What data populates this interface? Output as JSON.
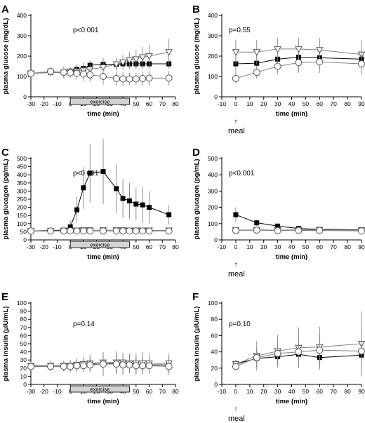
{
  "figure": {
    "background": "#ffffff",
    "text_color": "#000000"
  },
  "chart_data": [
    {
      "id": "A",
      "type": "line",
      "letter": "A",
      "xlabel": "time (min)",
      "ylabel": "plasma glucose (mg/dL)",
      "xlim": [
        -30,
        80
      ],
      "ylim": [
        0,
        400
      ],
      "xticks": [
        -30,
        -20,
        -10,
        0,
        10,
        20,
        30,
        40,
        50,
        60,
        70,
        80
      ],
      "yticks": [
        0,
        100,
        200,
        300,
        400
      ],
      "stat": "p<0.001",
      "exercise_bar": {
        "label": "exercise",
        "x0": 0,
        "x1": 45
      },
      "meal_marker": null,
      "series": [
        {
          "marker": "square",
          "color": "#000000",
          "x": [
            -30,
            -15,
            -5,
            0,
            5,
            10,
            15,
            25,
            35,
            40,
            45,
            50,
            55,
            60,
            75
          ],
          "y": [
            115,
            120,
            120,
            125,
            135,
            140,
            155,
            160,
            160,
            162,
            162,
            162,
            162,
            162,
            162
          ],
          "err": [
            10,
            10,
            15,
            20,
            25,
            30,
            25,
            30,
            25,
            25,
            25,
            25,
            25,
            25,
            25
          ]
        },
        {
          "marker": "triangle-down",
          "color": "#808080",
          "x": [
            -30,
            -15,
            -5,
            0,
            5,
            10,
            15,
            25,
            35,
            40,
            45,
            50,
            55,
            60,
            75
          ],
          "y": [
            115,
            120,
            120,
            125,
            125,
            130,
            135,
            145,
            160,
            170,
            180,
            185,
            195,
            200,
            220
          ],
          "err": [
            10,
            15,
            15,
            20,
            20,
            25,
            25,
            30,
            30,
            35,
            40,
            45,
            50,
            55,
            65
          ]
        },
        {
          "marker": "circle",
          "color": "#808080",
          "x": [
            -30,
            -15,
            -5,
            0,
            5,
            10,
            15,
            25,
            35,
            40,
            45,
            50,
            55,
            60,
            75
          ],
          "y": [
            115,
            125,
            120,
            118,
            115,
            112,
            108,
            100,
            90,
            88,
            88,
            88,
            90,
            92,
            92
          ],
          "err": [
            10,
            20,
            30,
            25,
            30,
            35,
            35,
            40,
            35,
            35,
            30,
            30,
            35,
            35,
            35
          ]
        }
      ]
    },
    {
      "id": "B",
      "type": "line",
      "letter": "B",
      "xlabel": "time (min)",
      "ylabel": "plasma glucose (mg/dL)",
      "xlim": [
        -10,
        90
      ],
      "ylim": [
        0,
        400
      ],
      "xticks": [
        -10,
        0,
        10,
        20,
        30,
        40,
        50,
        60,
        70,
        80,
        90
      ],
      "yticks": [
        0,
        100,
        200,
        300,
        400
      ],
      "stat": "p=0.55",
      "exercise_bar": null,
      "meal_marker": {
        "label": "meal",
        "x": 0
      },
      "series": [
        {
          "marker": "square",
          "color": "#000000",
          "x": [
            0,
            15,
            30,
            45,
            60,
            90
          ],
          "y": [
            162,
            165,
            185,
            195,
            192,
            185
          ],
          "err": [
            50,
            45,
            45,
            50,
            55,
            45
          ]
        },
        {
          "marker": "triangle-down",
          "color": "#808080",
          "x": [
            0,
            15,
            30,
            45,
            60,
            90
          ],
          "y": [
            220,
            220,
            235,
            235,
            230,
            208
          ],
          "err": [
            60,
            60,
            55,
            55,
            60,
            70
          ]
        },
        {
          "marker": "circle",
          "color": "#808080",
          "x": [
            0,
            15,
            30,
            45,
            60,
            90
          ],
          "y": [
            90,
            120,
            150,
            168,
            172,
            162
          ],
          "err": [
            25,
            30,
            40,
            50,
            55,
            55
          ]
        }
      ]
    },
    {
      "id": "C",
      "type": "line",
      "letter": "C",
      "xlabel": "time (min)",
      "ylabel": "plasma glucagon (pg/mL)",
      "xlim": [
        -30,
        80
      ],
      "ylim": [
        0,
        500
      ],
      "xticks": [
        -30,
        -20,
        -10,
        0,
        10,
        20,
        30,
        40,
        50,
        60,
        70,
        80
      ],
      "yticks": [
        0,
        50,
        100,
        150,
        200,
        250,
        300,
        350,
        400,
        450,
        500
      ],
      "stat": "p<0.001",
      "exercise_bar": {
        "label": "exercise",
        "x0": 0,
        "x1": 45
      },
      "meal_marker": null,
      "series": [
        {
          "marker": "square",
          "color": "#000000",
          "x": [
            -30,
            -15,
            -5,
            0,
            5,
            10,
            15,
            25,
            35,
            40,
            45,
            50,
            55,
            60,
            75
          ],
          "y": [
            55,
            58,
            60,
            80,
            185,
            320,
            410,
            420,
            315,
            255,
            240,
            220,
            215,
            200,
            155
          ],
          "err": [
            10,
            10,
            15,
            40,
            80,
            130,
            180,
            200,
            150,
            120,
            110,
            100,
            110,
            100,
            60
          ]
        },
        {
          "marker": "triangle-down",
          "color": "#808080",
          "x": [
            -30,
            -15,
            -5,
            0,
            5,
            10,
            15,
            25,
            35,
            40,
            45,
            50,
            55,
            60,
            75
          ],
          "y": [
            55,
            55,
            57,
            58,
            58,
            60,
            60,
            60,
            60,
            60,
            58,
            58,
            58,
            58,
            58
          ],
          "err": [
            10,
            10,
            12,
            15,
            15,
            15,
            15,
            15,
            15,
            15,
            15,
            15,
            15,
            15,
            15
          ]
        },
        {
          "marker": "circle",
          "color": "#808080",
          "x": [
            -30,
            -15,
            -5,
            0,
            5,
            10,
            15,
            25,
            35,
            40,
            45,
            50,
            55,
            60,
            75
          ],
          "y": [
            55,
            55,
            55,
            56,
            55,
            55,
            55,
            55,
            55,
            55,
            55,
            55,
            55,
            55,
            55
          ],
          "err": [
            10,
            10,
            12,
            15,
            15,
            15,
            15,
            15,
            15,
            15,
            15,
            15,
            15,
            15,
            15
          ]
        }
      ]
    },
    {
      "id": "D",
      "type": "line",
      "letter": "D",
      "xlabel": "time (min)",
      "ylabel": "plasma glucagon (pg/mL)",
      "xlim": [
        -10,
        90
      ],
      "ylim": [
        0,
        500
      ],
      "xticks": [
        -10,
        0,
        10,
        20,
        30,
        40,
        50,
        60,
        70,
        80,
        90
      ],
      "yticks": [
        0,
        100,
        200,
        300,
        400,
        500
      ],
      "stat": "p<0.001",
      "exercise_bar": null,
      "meal_marker": {
        "label": "meal",
        "x": 0
      },
      "series": [
        {
          "marker": "square",
          "color": "#000000",
          "x": [
            0,
            15,
            30,
            45,
            60,
            90
          ],
          "y": [
            155,
            105,
            85,
            70,
            65,
            62
          ],
          "err": [
            45,
            20,
            15,
            15,
            10,
            10
          ]
        },
        {
          "marker": "triangle-down",
          "color": "#808080",
          "x": [
            0,
            15,
            30,
            45,
            60,
            90
          ],
          "y": [
            60,
            62,
            60,
            62,
            62,
            60
          ],
          "err": [
            15,
            15,
            12,
            15,
            12,
            12
          ]
        },
        {
          "marker": "circle",
          "color": "#808080",
          "x": [
            0,
            15,
            30,
            45,
            60,
            90
          ],
          "y": [
            58,
            60,
            57,
            58,
            58,
            55
          ],
          "err": [
            15,
            15,
            12,
            12,
            12,
            12
          ]
        }
      ]
    },
    {
      "id": "E",
      "type": "line",
      "letter": "E",
      "xlabel": "time (min)",
      "ylabel": "plasma insulin (µIU/mL)",
      "xlim": [
        -30,
        80
      ],
      "ylim": [
        0,
        100
      ],
      "xticks": [
        -30,
        -20,
        -10,
        0,
        10,
        20,
        30,
        40,
        50,
        60,
        70,
        80
      ],
      "yticks": [
        0,
        10,
        20,
        30,
        40,
        50,
        60,
        70,
        80,
        90,
        100
      ],
      "stat": "p=0.14",
      "exercise_bar": {
        "label": "exercise",
        "x0": 0,
        "x1": 45
      },
      "meal_marker": null,
      "series": [
        {
          "marker": "square",
          "color": "#000000",
          "x": [
            -30,
            -15,
            -5,
            0,
            5,
            10,
            15,
            25,
            35,
            40,
            45,
            50,
            55,
            60,
            75
          ],
          "y": [
            23,
            23,
            22,
            22,
            23,
            24,
            25,
            25,
            26,
            25,
            25,
            24,
            24,
            24,
            24
          ],
          "err": [
            5,
            6,
            6,
            7,
            8,
            8,
            10,
            15,
            12,
            12,
            10,
            12,
            10,
            10,
            10
          ]
        },
        {
          "marker": "triangle-down",
          "color": "#808080",
          "x": [
            -30,
            -15,
            -5,
            0,
            5,
            10,
            15,
            25,
            35,
            40,
            45,
            50,
            55,
            60,
            75
          ],
          "y": [
            23,
            23,
            23,
            23,
            24,
            25,
            26,
            27,
            27,
            27,
            26,
            26,
            26,
            26,
            26
          ],
          "err": [
            5,
            6,
            6,
            7,
            8,
            9,
            10,
            12,
            14,
            12,
            12,
            12,
            14,
            12,
            12
          ]
        },
        {
          "marker": "circle",
          "color": "#808080",
          "x": [
            -30,
            -15,
            -5,
            0,
            5,
            10,
            15,
            25,
            35,
            40,
            45,
            50,
            55,
            60,
            75
          ],
          "y": [
            22,
            22,
            22,
            22,
            23,
            23,
            24,
            25,
            25,
            24,
            24,
            23,
            23,
            23,
            22
          ],
          "err": [
            5,
            6,
            6,
            6,
            7,
            8,
            8,
            10,
            12,
            12,
            10,
            10,
            10,
            10,
            10
          ]
        }
      ]
    },
    {
      "id": "F",
      "type": "line",
      "letter": "F",
      "xlabel": "time (min)",
      "ylabel": "plasma insulin (µIU/mL)",
      "xlim": [
        -10,
        90
      ],
      "ylim": [
        0,
        100
      ],
      "xticks": [
        -10,
        0,
        10,
        20,
        30,
        40,
        50,
        60,
        70,
        80,
        90
      ],
      "yticks": [
        0,
        20,
        40,
        60,
        80,
        100
      ],
      "stat": "p=0.10",
      "exercise_bar": null,
      "meal_marker": {
        "label": "meal",
        "x": 0
      },
      "series": [
        {
          "marker": "square",
          "color": "#000000",
          "x": [
            0,
            15,
            30,
            45,
            60,
            90
          ],
          "y": [
            25,
            32,
            34,
            37,
            33,
            36
          ],
          "err": [
            5,
            10,
            12,
            15,
            15,
            15
          ]
        },
        {
          "marker": "triangle-down",
          "color": "#808080",
          "x": [
            0,
            15,
            30,
            45,
            60,
            90
          ],
          "y": [
            25,
            35,
            41,
            45,
            46,
            50
          ],
          "err": [
            5,
            18,
            20,
            25,
            25,
            40
          ]
        },
        {
          "marker": "circle",
          "color": "#808080",
          "x": [
            0,
            15,
            30,
            45,
            60,
            90
          ],
          "y": [
            22,
            33,
            38,
            40,
            42,
            41
          ],
          "err": [
            5,
            12,
            15,
            20,
            20,
            25
          ]
        }
      ]
    }
  ]
}
